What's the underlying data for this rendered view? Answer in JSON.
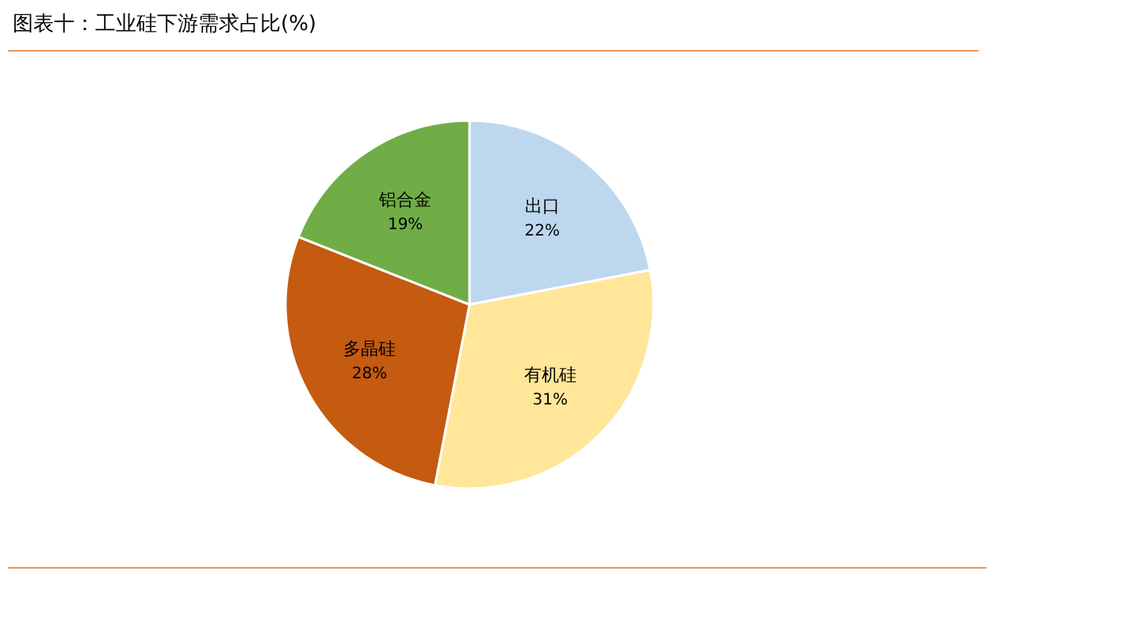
{
  "chart_data": {
    "type": "pie",
    "title": "图表十：工业硅下游需求占比(%)",
    "categories": [
      "出口",
      "有机硅",
      "多晶硅",
      "铝合金"
    ],
    "values": [
      22,
      31,
      28,
      19
    ],
    "colors": [
      "#bdd7ee",
      "#ffe699",
      "#c55a11",
      "#70ad47"
    ],
    "value_labels": [
      "22%",
      "31%",
      "28%",
      "19%"
    ],
    "legend": false
  }
}
